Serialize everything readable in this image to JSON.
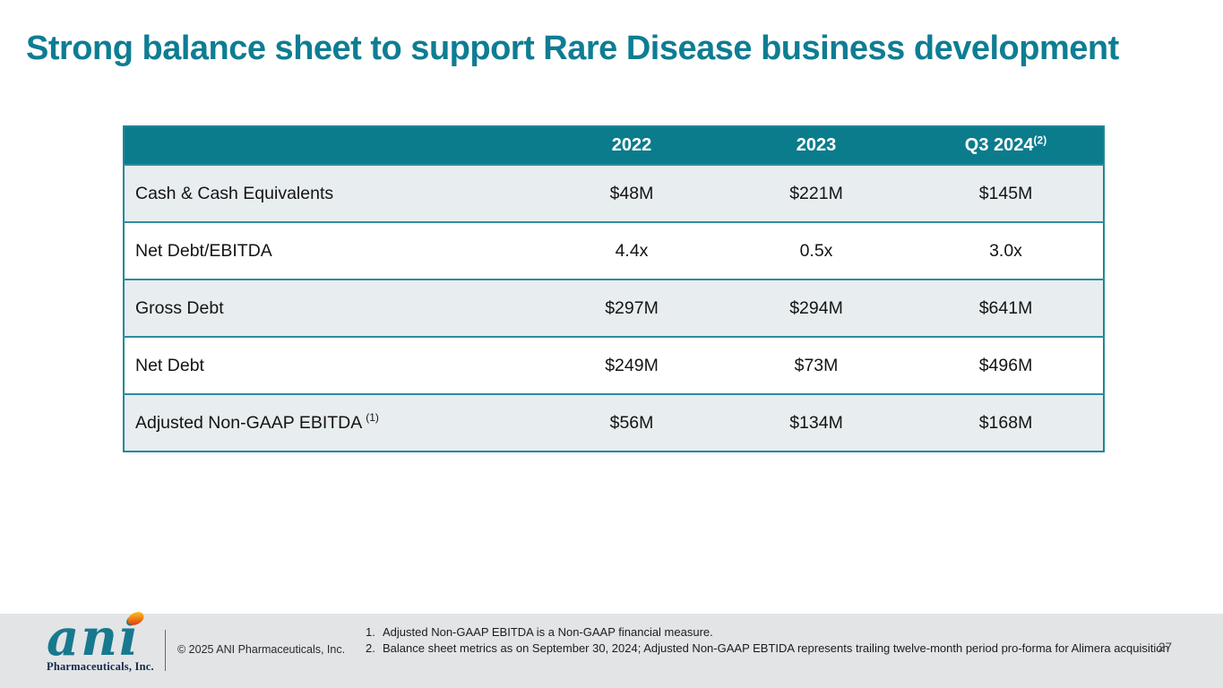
{
  "slide": {
    "title": "Strong balance sheet to support Rare Disease business development",
    "page_number": "27"
  },
  "table": {
    "columns": [
      {
        "label": "",
        "sup": ""
      },
      {
        "label": "2022",
        "sup": ""
      },
      {
        "label": "2023",
        "sup": ""
      },
      {
        "label": "Q3 2024",
        "sup": "(2)"
      }
    ],
    "rows": [
      {
        "label": "Cash & Cash Equivalents",
        "label_sup": "",
        "values": [
          "$48M",
          "$221M",
          "$145M"
        ]
      },
      {
        "label": "Net Debt/EBITDA",
        "label_sup": "",
        "values": [
          "4.4x",
          "0.5x",
          "3.0x"
        ]
      },
      {
        "label": "Gross Debt",
        "label_sup": "",
        "values": [
          "$297M",
          "$294M",
          "$641M"
        ]
      },
      {
        "label": "Net Debt",
        "label_sup": "",
        "values": [
          "$249M",
          "$73M",
          "$496M"
        ]
      },
      {
        "label": "Adjusted Non-GAAP EBITDA",
        "label_sup": "(1)",
        "values": [
          "$56M",
          "$134M",
          "$168M"
        ]
      }
    ]
  },
  "footer": {
    "logo_text": "ani",
    "logo_subtext": "Pharmaceuticals, Inc.",
    "copyright": "© 2025 ANI Pharmaceuticals, Inc.",
    "footnotes": [
      {
        "num": "1.",
        "text": "Adjusted Non-GAAP EBITDA is a Non-GAAP financial measure."
      },
      {
        "num": "2.",
        "text": "Balance sheet metrics as on September 30, 2024; Adjusted Non-GAAP EBTIDA represents trailing twelve-month period pro-forma for Alimera acquisition"
      }
    ]
  },
  "colors": {
    "title_teal": "#0e7d93",
    "header_teal": "#0b7c8c",
    "table_border": "#2d8da1",
    "row_alt": "#e8edef",
    "footer_bg": "#e3e4e5",
    "logo_teal": "#17798f",
    "logo_navy": "#13294b",
    "logo_dot_orange": "#f9ae17",
    "logo_dot_red": "#e23c10"
  }
}
